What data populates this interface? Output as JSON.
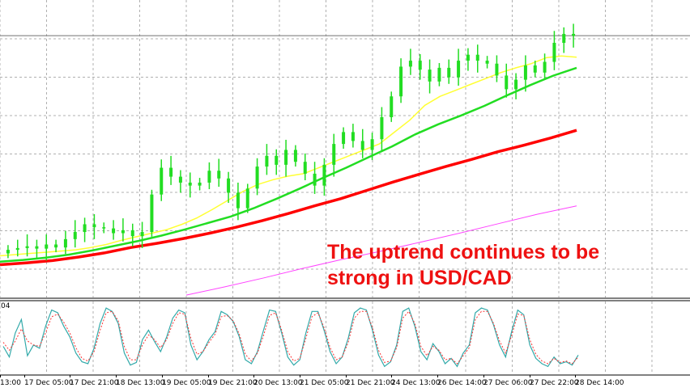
{
  "chart_data": [
    {
      "type": "candlestick",
      "colors": {
        "candles": "#22dd22",
        "ma_fast": "#ffff33",
        "ma_medium": "#22dd22",
        "ma_slow": "#ff0000",
        "ma_longest": "#ff44ff",
        "grid": "#b0b0b0",
        "price_line": "#707070",
        "background": "#ffffff"
      },
      "grid": true,
      "annotation": [
        "The uptrend continues to be",
        "strong in USD/CAD"
      ],
      "x_tick_labels": [
        "13:00",
        "17 Dec 05:00",
        "17 Dec 21:00",
        "18 Dec 13:00",
        "19 Dec 05:00",
        "19 Dec 21:00",
        "20 Dec 13:00",
        "21 Dec 05:00",
        "21 Dec 21:00",
        "24 Dec 13:00",
        "26 Dec 14:00",
        "27 Dec 06:00",
        "27 Dec 22:00",
        "28 Dec 14:00"
      ],
      "closes": [
        1.3342,
        1.3345,
        1.3348,
        1.3344,
        1.3351,
        1.3346,
        1.336,
        1.3372,
        1.3385,
        1.338,
        1.3378,
        1.337,
        1.3375,
        1.3365,
        1.3372,
        1.3435,
        1.348,
        1.3465,
        1.3455,
        1.345,
        1.3455,
        1.3475,
        1.3462,
        1.3438,
        1.3412,
        1.3445,
        1.3482,
        1.35,
        1.3485,
        1.351,
        1.349,
        1.347,
        1.345,
        1.3485,
        1.352,
        1.354,
        1.3525,
        1.351,
        1.3528,
        1.3565,
        1.36,
        1.365,
        1.366,
        1.3645,
        1.3625,
        1.3648,
        1.3632,
        1.366,
        1.367,
        1.366,
        1.3655,
        1.3635,
        1.3612,
        1.3628,
        1.3652,
        1.364,
        1.3658,
        1.369,
        1.3705,
        1.3702
      ],
      "ma_fast": [
        1.3332,
        1.3334,
        1.3336,
        1.3338,
        1.334,
        1.3342,
        1.3346,
        1.3351,
        1.3358,
        1.3364,
        1.337,
        1.3376,
        1.3385,
        1.3396,
        1.341,
        1.3425,
        1.344,
        1.3452,
        1.346,
        1.3466,
        1.347,
        1.348,
        1.349,
        1.35,
        1.351,
        1.352,
        1.354,
        1.356,
        1.3585,
        1.36,
        1.361,
        1.362,
        1.363,
        1.364,
        1.3648,
        1.3655,
        1.3665,
        1.3668,
        1.3666
      ],
      "ma_medium": [
        1.3322,
        1.3325,
        1.3329,
        1.3334,
        1.3341,
        1.3349,
        1.3357,
        1.3366,
        1.3376,
        1.3387,
        1.3398,
        1.3412,
        1.3428,
        1.3445,
        1.3463,
        1.348,
        1.3498,
        1.3516,
        1.3536,
        1.3553,
        1.3568,
        1.3584,
        1.3602,
        1.3619,
        1.3635,
        1.3648
      ],
      "ma_slow": [
        1.3317,
        1.332,
        1.3324,
        1.333,
        1.3337,
        1.3346,
        1.3353,
        1.3361,
        1.337,
        1.338,
        1.3391,
        1.3403,
        1.3416,
        1.3428,
        1.3442,
        1.3456,
        1.3469,
        1.3482,
        1.3494,
        1.3507,
        1.3518,
        1.353,
        1.3543
      ],
      "ma_longest": [
        1.3266,
        1.328,
        1.3295,
        1.3311,
        1.3326,
        1.334,
        1.3355,
        1.337,
        1.3386,
        1.3402,
        1.3416
      ],
      "ylim": [
        1.3262,
        1.3762
      ]
    },
    {
      "type": "line",
      "title": "04",
      "series": [
        {
          "values": [
            38,
            22,
            58,
            78,
            24,
            40,
            35,
            68,
            92,
            88,
            68,
            52,
            28,
            15,
            12,
            35,
            72,
            95,
            90,
            72,
            28,
            10,
            14,
            48,
            62,
            45,
            30,
            52,
            80,
            92,
            88,
            40,
            18,
            30,
            48,
            60,
            90,
            85,
            75,
            52,
            18,
            12,
            30,
            62,
            92,
            90,
            58,
            22,
            10,
            18,
            58,
            90,
            90,
            62,
            30,
            12,
            22,
            50,
            88,
            95,
            92,
            62,
            25,
            8,
            15,
            40,
            90,
            95,
            68,
            30,
            18,
            42,
            30,
            12,
            20,
            8,
            28,
            40,
            88,
            95,
            92,
            70,
            40,
            22,
            60,
            92,
            85,
            40,
            20,
            12,
            8,
            22,
            12,
            15,
            10,
            25
          ]
        },
        {
          "values": [
            44,
            32,
            46,
            64,
            46,
            40,
            38,
            58,
            82,
            86,
            74,
            58,
            36,
            20,
            16,
            30,
            62,
            88,
            90,
            76,
            38,
            18,
            18,
            40,
            55,
            48,
            36,
            48,
            72,
            88,
            86,
            50,
            26,
            30,
            44,
            56,
            82,
            84,
            76,
            56,
            26,
            16,
            28,
            54,
            84,
            88,
            62,
            30,
            16,
            20,
            50,
            82,
            88,
            66,
            36,
            18,
            22,
            44,
            80,
            90,
            90,
            66,
            32,
            14,
            16,
            36,
            80,
            90,
            72,
            38,
            24,
            38,
            32,
            18,
            20,
            12,
            24,
            36,
            78,
            90,
            90,
            72,
            46,
            28,
            54,
            86,
            84,
            48,
            26,
            16,
            12,
            20,
            14,
            16,
            12,
            22
          ]
        }
      ],
      "ylim": [
        0,
        100
      ]
    }
  ]
}
